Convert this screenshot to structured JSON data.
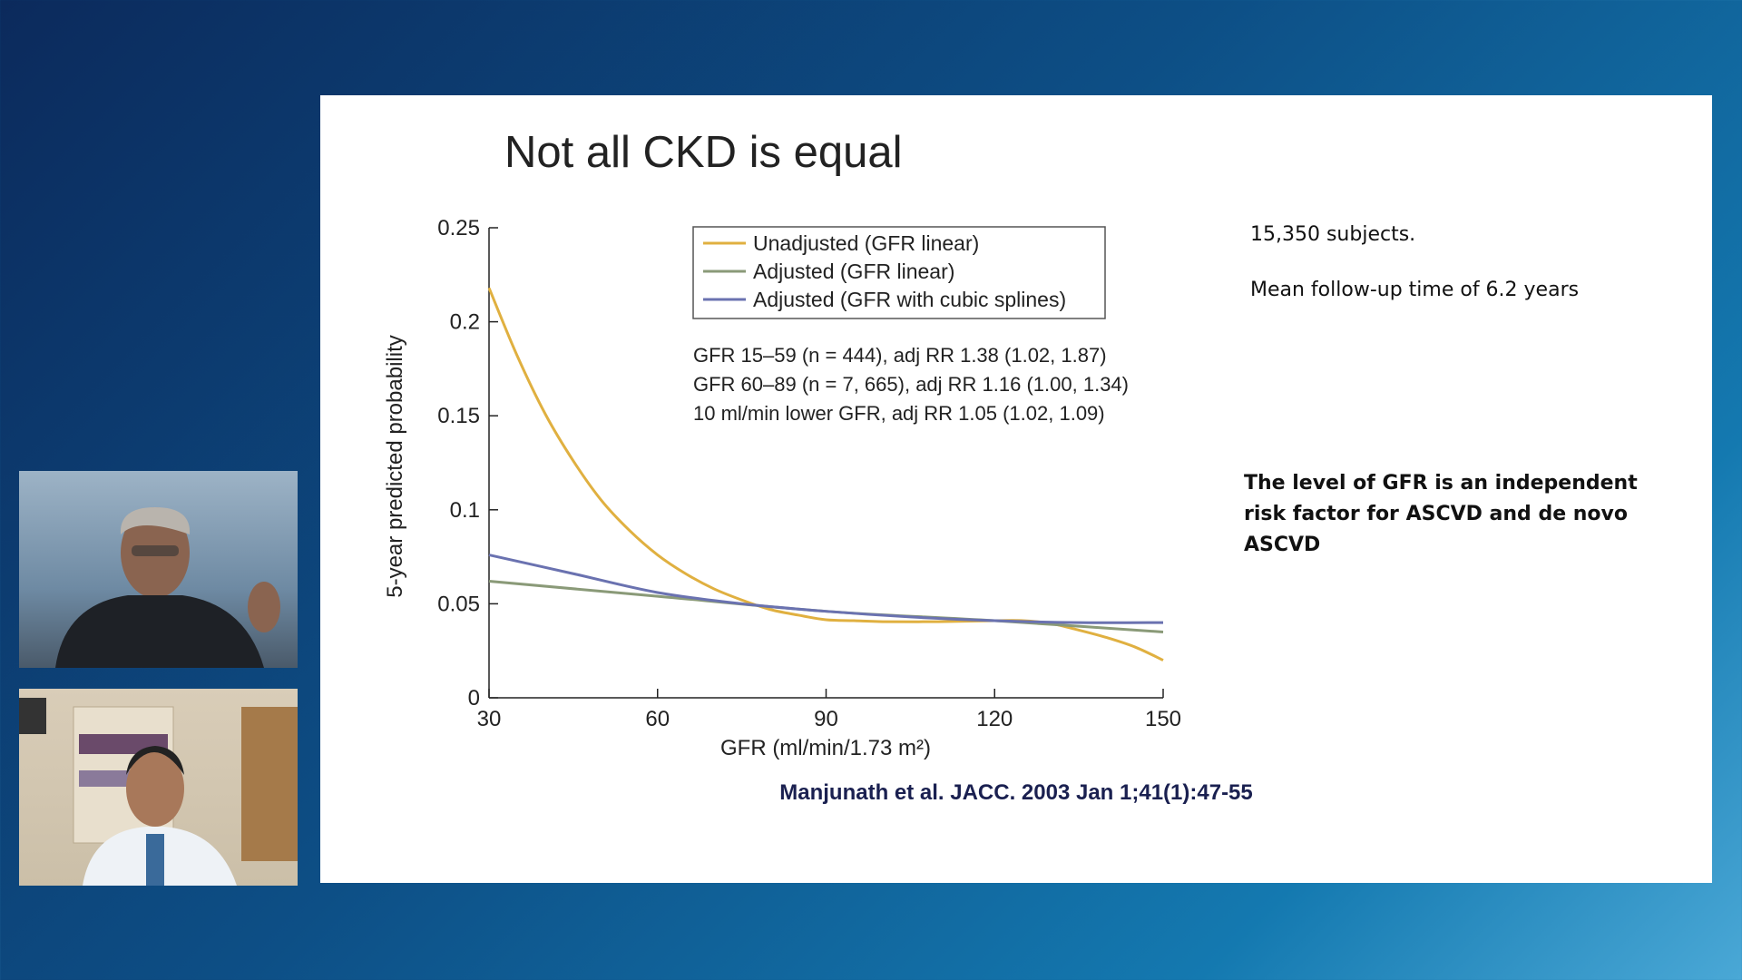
{
  "slide": {
    "title": "Not all CKD is equal",
    "notes": [
      "15,350 subjects.",
      "Mean follow-up time of 6.2 years"
    ],
    "conclusion": "The level of GFR is an independent risk factor for ASCVD and de novo ASCVD",
    "citation": "Manjunath et al. JACC. 2003 Jan 1;41(1):47-55"
  },
  "participants": [
    {
      "label": "speaker-video"
    },
    {
      "label": "participant-video"
    }
  ],
  "chart_data": {
    "type": "line",
    "title": "",
    "xlabel": "GFR (ml/min/1.73 m²)",
    "ylabel": "5-year predicted probability",
    "xlim": [
      30,
      150
    ],
    "ylim": [
      0,
      0.25
    ],
    "xticks": [
      "30",
      "60",
      "90",
      "120",
      "150"
    ],
    "yticks": [
      "0",
      "0.05",
      "0.1",
      "0.15",
      "0.2",
      "0.25"
    ],
    "grid": false,
    "legend_position": "top-center",
    "series": [
      {
        "name": "Unadjusted (GFR linear)",
        "color": "#e0b040",
        "x": [
          30,
          35,
          40,
          45,
          50,
          55,
          60,
          65,
          70,
          75,
          80,
          85,
          90,
          95,
          100,
          110,
          120,
          125,
          130,
          135,
          140,
          145,
          150
        ],
        "y": [
          0.218,
          0.182,
          0.151,
          0.126,
          0.105,
          0.089,
          0.076,
          0.066,
          0.058,
          0.052,
          0.047,
          0.044,
          0.0415,
          0.041,
          0.0405,
          0.0405,
          0.041,
          0.041,
          0.0395,
          0.036,
          0.032,
          0.027,
          0.02
        ]
      },
      {
        "name": "Adjusted (GFR linear)",
        "color": "#8a9a78",
        "x": [
          30,
          60,
          90,
          120,
          150
        ],
        "y": [
          0.062,
          0.054,
          0.046,
          0.041,
          0.035
        ]
      },
      {
        "name": "Adjusted (GFR with cubic splines)",
        "color": "#6a72b0",
        "x": [
          30,
          45,
          60,
          75,
          90,
          105,
          120,
          135,
          150
        ],
        "y": [
          0.076,
          0.066,
          0.056,
          0.05,
          0.046,
          0.043,
          0.041,
          0.04,
          0.04
        ]
      }
    ],
    "annotations": [
      "GFR 15–59 (n = 444), adj RR 1.38 (1.02, 1.87)",
      "GFR 60–89 (n = 7, 665), adj RR 1.16 (1.00, 1.34)",
      "10 ml/min lower GFR, adj RR 1.05 (1.02, 1.09)"
    ]
  }
}
